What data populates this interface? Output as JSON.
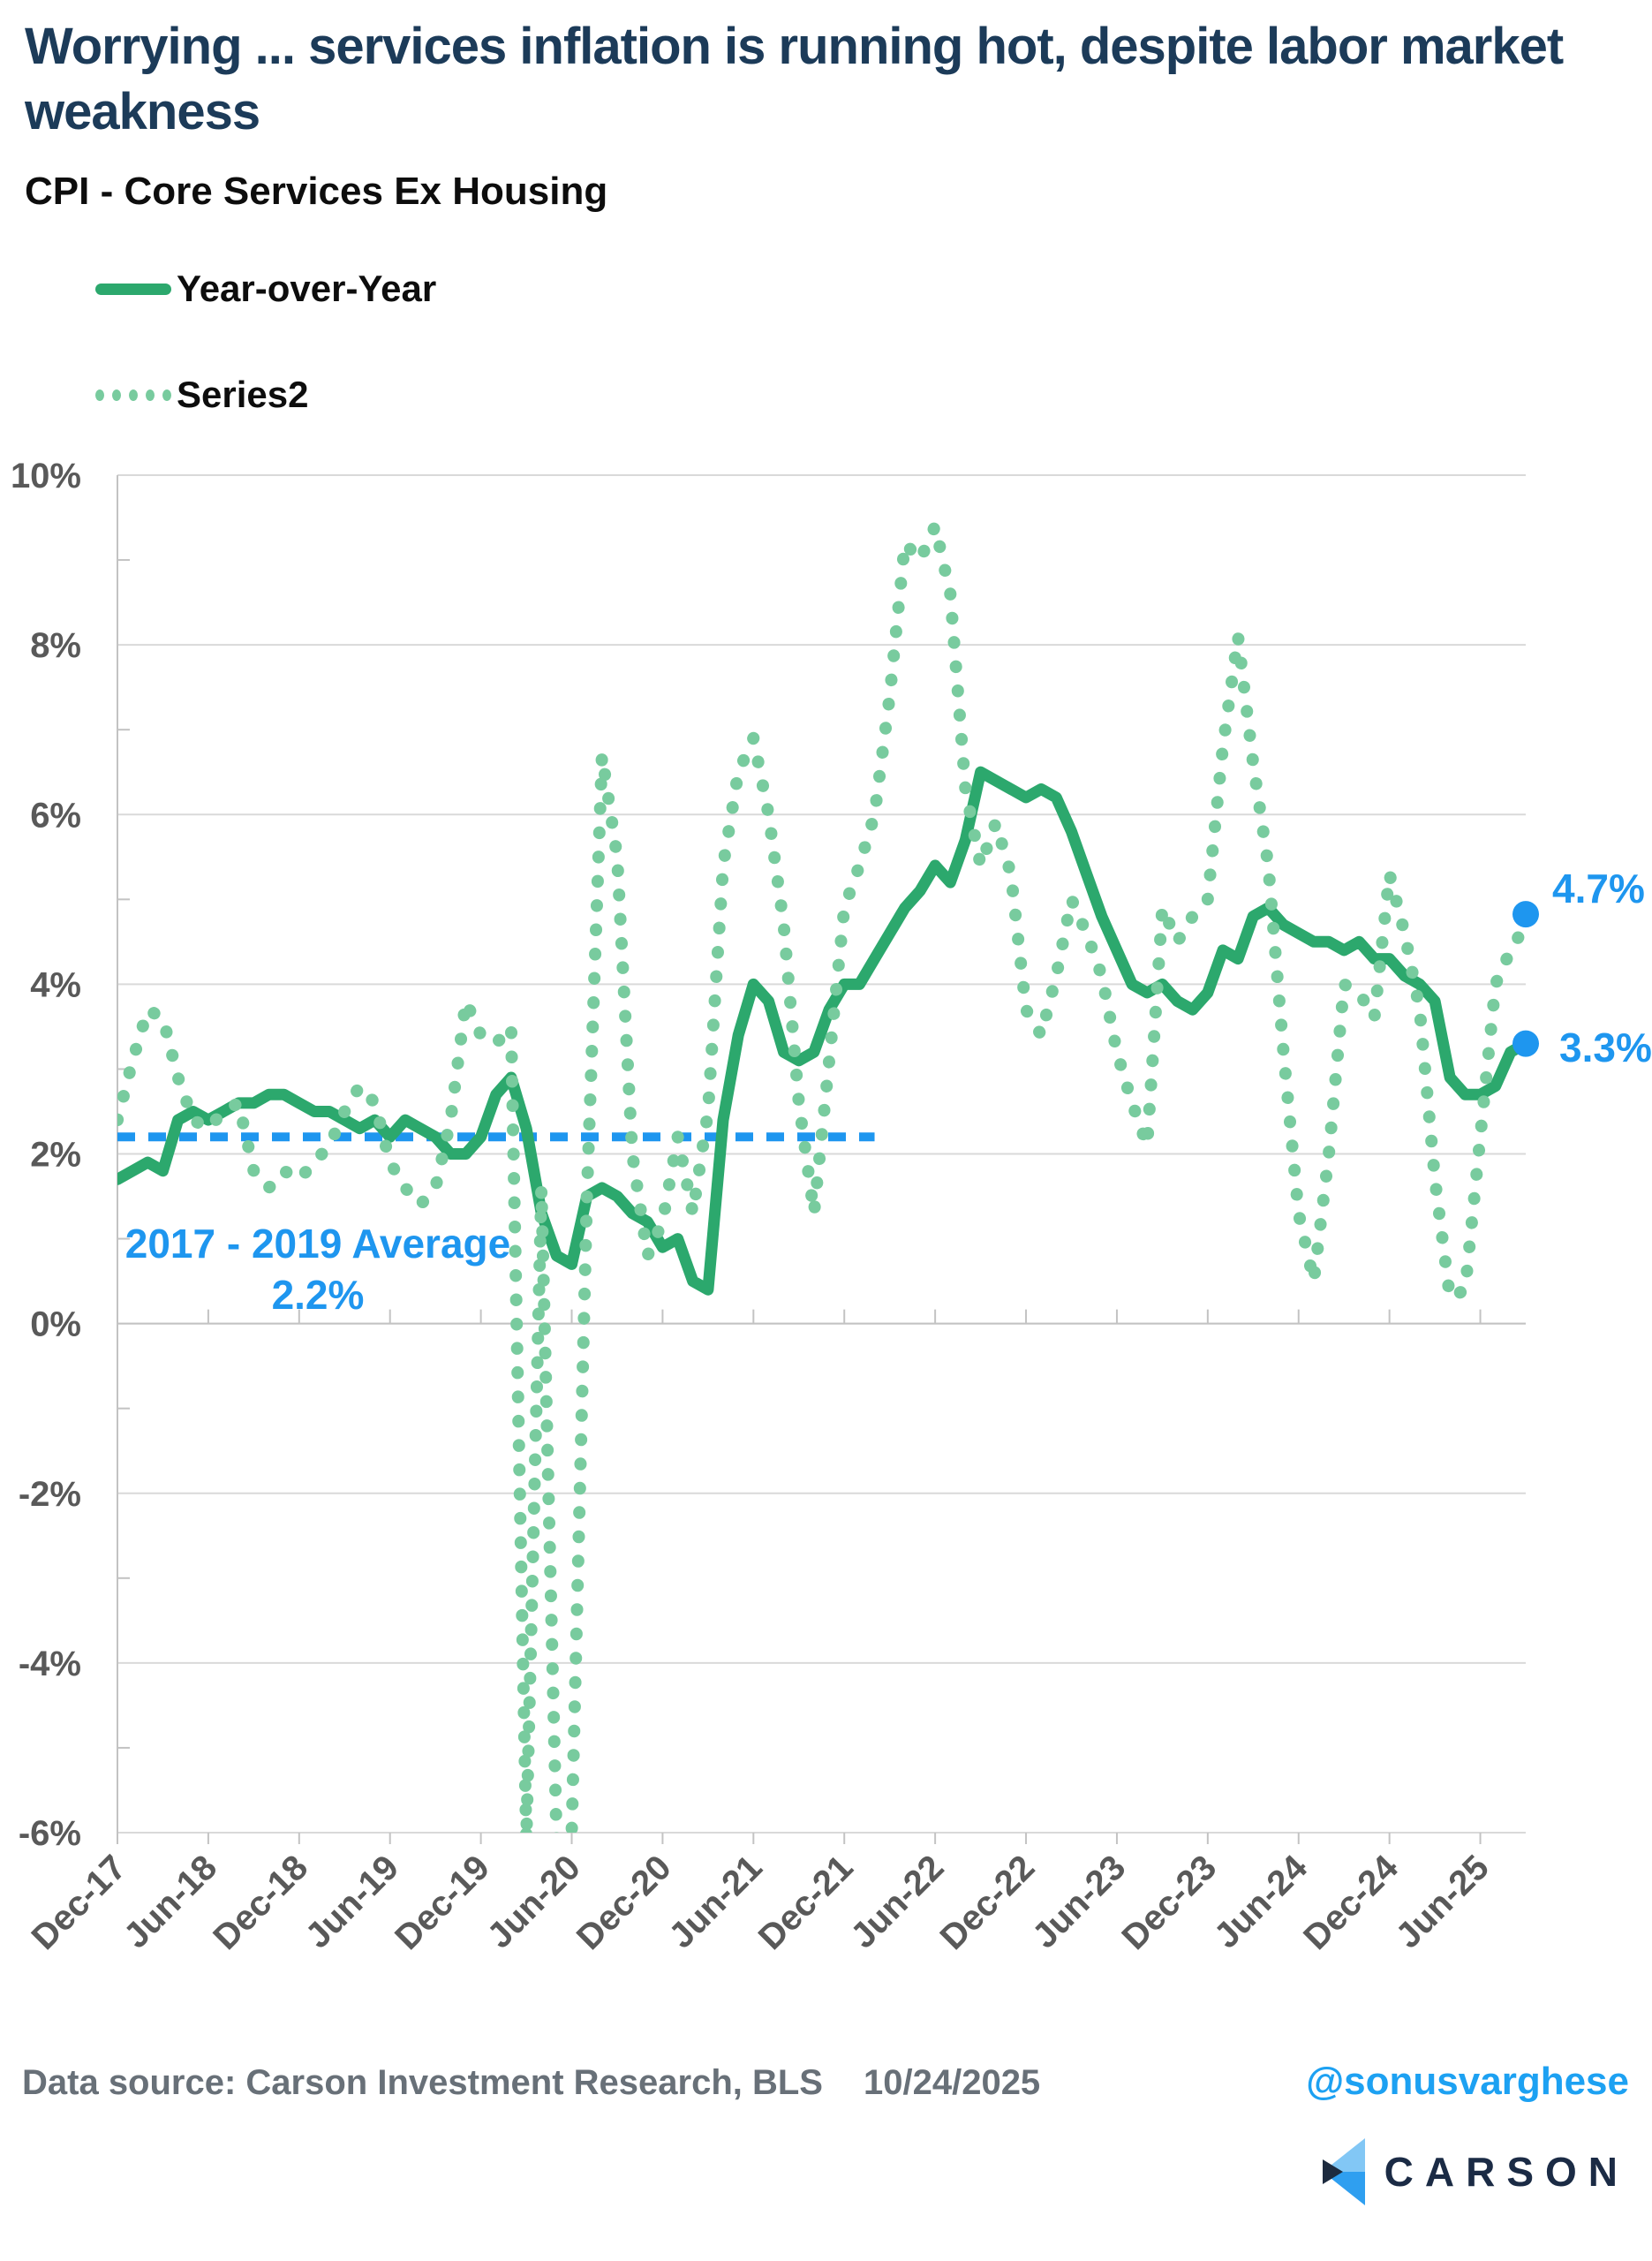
{
  "header": {
    "title": "Worrying ... services inflation is running hot, despite labor market weakness",
    "subtitle": "CPI - Core Services Ex Housing"
  },
  "legend": {
    "items": [
      {
        "label": "Year-over-Year",
        "style": "solid"
      },
      {
        "label": "Series2",
        "style": "dotted"
      }
    ]
  },
  "colors": {
    "title_navy": "#1c3b59",
    "solid_series_green": "#2ca86d",
    "dotted_series_green": "#78cb9e",
    "callout_blue": "#1e96ef",
    "handle_blue": "#1da1f2",
    "axis_text_gray": "#595959",
    "gridline_gray": "#d9d9d9",
    "axis_line_gray": "#c3c3c3",
    "footer_gray": "#687078",
    "logo_light_blue": "#82c7f5",
    "logo_bright_blue": "#2f9ff0",
    "logo_navy": "#1d2b3f"
  },
  "chart_data": {
    "type": "line",
    "title": "CPI - Core Services Ex Housing",
    "ylim": [
      -6,
      10
    ],
    "grid": "horizontal",
    "legend_position": "top-left",
    "yticks": [
      {
        "value": 10,
        "label": "10%"
      },
      {
        "value": 8,
        "label": "8%"
      },
      {
        "value": 6,
        "label": "6%"
      },
      {
        "value": 4,
        "label": "4%"
      },
      {
        "value": 2,
        "label": "2%"
      },
      {
        "value": 0,
        "label": "0%"
      },
      {
        "value": -2,
        "label": "-2%"
      },
      {
        "value": -4,
        "label": "-4%"
      },
      {
        "value": -6,
        "label": "-6%"
      }
    ],
    "xticks": [
      {
        "index": 0,
        "label": "Dec-17"
      },
      {
        "index": 6,
        "label": "Jun-18"
      },
      {
        "index": 12,
        "label": "Dec-18"
      },
      {
        "index": 18,
        "label": "Jun-19"
      },
      {
        "index": 24,
        "label": "Dec-19"
      },
      {
        "index": 30,
        "label": "Jun-20"
      },
      {
        "index": 36,
        "label": "Dec-20"
      },
      {
        "index": 42,
        "label": "Jun-21"
      },
      {
        "index": 48,
        "label": "Dec-21"
      },
      {
        "index": 54,
        "label": "Jun-22"
      },
      {
        "index": 60,
        "label": "Dec-22"
      },
      {
        "index": 66,
        "label": "Jun-23"
      },
      {
        "index": 72,
        "label": "Dec-23"
      },
      {
        "index": 78,
        "label": "Jun-24"
      },
      {
        "index": 84,
        "label": "Dec-24"
      },
      {
        "index": 90,
        "label": "Jun-25"
      }
    ],
    "x": [
      "Dec-17",
      "Jan-18",
      "Feb-18",
      "Mar-18",
      "Apr-18",
      "May-18",
      "Jun-18",
      "Jul-18",
      "Aug-18",
      "Sep-18",
      "Oct-18",
      "Nov-18",
      "Dec-18",
      "Jan-19",
      "Feb-19",
      "Mar-19",
      "Apr-19",
      "May-19",
      "Jun-19",
      "Jul-19",
      "Aug-19",
      "Sep-19",
      "Oct-19",
      "Nov-19",
      "Dec-19",
      "Jan-20",
      "Feb-20",
      "Mar-20",
      "Apr-20",
      "May-20",
      "Jun-20",
      "Jul-20",
      "Aug-20",
      "Sep-20",
      "Oct-20",
      "Nov-20",
      "Dec-20",
      "Jan-21",
      "Feb-21",
      "Mar-21",
      "Apr-21",
      "May-21",
      "Jun-21",
      "Jul-21",
      "Aug-21",
      "Sep-21",
      "Oct-21",
      "Nov-21",
      "Dec-21",
      "Jan-22",
      "Feb-22",
      "Mar-22",
      "Apr-22",
      "May-22",
      "Jun-22",
      "Jul-22",
      "Aug-22",
      "Sep-22",
      "Oct-22",
      "Nov-22",
      "Dec-22",
      "Jan-23",
      "Feb-23",
      "Mar-23",
      "Apr-23",
      "May-23",
      "Jun-23",
      "Jul-23",
      "Aug-23",
      "Sep-23",
      "Oct-23",
      "Nov-23",
      "Dec-23",
      "Jan-24",
      "Feb-24",
      "Mar-24",
      "Apr-24",
      "May-24",
      "Jun-24",
      "Jul-24",
      "Aug-24",
      "Sep-24",
      "Oct-24",
      "Nov-24",
      "Dec-24",
      "Jan-25",
      "Feb-25",
      "Mar-25",
      "Apr-25",
      "May-25",
      "Jun-25",
      "Jul-25",
      "Aug-25",
      "Sep-25"
    ],
    "series": [
      {
        "name": "Year-over-Year",
        "style": "solid",
        "values": [
          1.7,
          1.8,
          1.9,
          1.8,
          2.4,
          2.5,
          2.4,
          2.5,
          2.6,
          2.6,
          2.7,
          2.7,
          2.6,
          2.5,
          2.5,
          2.4,
          2.3,
          2.4,
          2.2,
          2.4,
          2.3,
          2.2,
          2.0,
          2.0,
          2.2,
          2.7,
          2.9,
          2.3,
          1.3,
          0.8,
          0.7,
          1.5,
          1.6,
          1.5,
          1.3,
          1.2,
          0.9,
          1.0,
          0.5,
          0.4,
          2.4,
          3.4,
          4.0,
          3.8,
          3.2,
          3.1,
          3.2,
          3.7,
          4.0,
          4.0,
          4.3,
          4.6,
          4.9,
          5.1,
          5.4,
          5.2,
          5.7,
          6.5,
          6.4,
          6.3,
          6.2,
          6.3,
          6.2,
          5.8,
          5.3,
          4.8,
          4.4,
          4.0,
          3.9,
          4.0,
          3.8,
          3.7,
          3.9,
          4.4,
          4.3,
          4.8,
          4.9,
          4.7,
          4.6,
          4.5,
          4.5,
          4.4,
          4.5,
          4.3,
          4.3,
          4.1,
          4.0,
          3.8,
          2.9,
          2.7,
          2.7,
          2.8,
          3.2,
          3.3
        ]
      },
      {
        "name": "Series2",
        "style": "dotted",
        "values": [
          2.4,
          3.1,
          3.7,
          3.6,
          2.9,
          2.4,
          2.3,
          2.5,
          2.6,
          1.8,
          1.6,
          1.8,
          1.7,
          1.9,
          2.1,
          2.5,
          2.8,
          2.6,
          1.9,
          1.6,
          1.4,
          1.6,
          2.4,
          3.8,
          3.4,
          3.3,
          3.5,
          -6.1,
          1.6,
          -6.1,
          -6.0,
          1.5,
          6.7,
          5.5,
          2.0,
          0.8,
          1.2,
          2.2,
          1.3,
          2.5,
          5.4,
          6.5,
          6.9,
          6.0,
          4.7,
          2.6,
          1.3,
          3.1,
          4.9,
          5.4,
          6.0,
          7.4,
          9.2,
          9.0,
          9.4,
          8.6,
          6.3,
          5.4,
          5.9,
          5.3,
          3.7,
          3.4,
          4.1,
          5.0,
          4.6,
          4.1,
          3.2,
          2.6,
          2.1,
          4.9,
          4.5,
          4.8,
          5.0,
          6.8,
          8.1,
          6.6,
          5.4,
          3.2,
          1.3,
          0.5,
          2.0,
          4.0,
          3.9,
          3.6,
          5.3,
          4.6,
          3.7,
          1.7,
          0.3,
          0.4,
          2.2,
          4.0,
          4.4,
          4.7
        ]
      }
    ],
    "average_line": {
      "label_line1": "2017 - 2019 Average",
      "label_line2": "2.2%",
      "value": 2.2,
      "start_index": 0,
      "end_index": 50
    },
    "end_labels": [
      {
        "text": "4.7%",
        "series": "Series2",
        "value": 4.7
      },
      {
        "text": "3.3%",
        "series": "Year-over-Year",
        "value": 3.3
      }
    ]
  },
  "footer": {
    "source": "Data source: Carson Investment Research, BLS",
    "date": "10/24/2025",
    "handle": "@sonusvarghese",
    "brand": "CARSON"
  }
}
